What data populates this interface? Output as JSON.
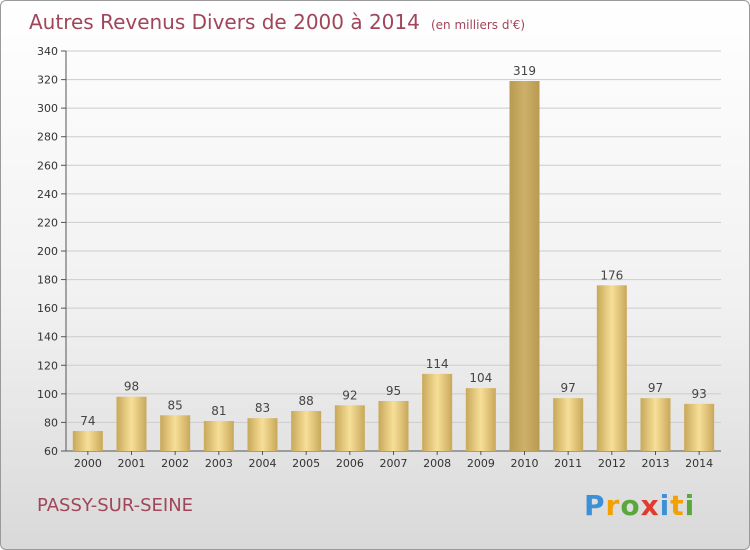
{
  "header": {
    "title": "Autres Revenus Divers de 2000 à 2014",
    "unit": "(en milliers d'€)"
  },
  "footer": {
    "place": "PASSY-SUR-SEINE",
    "brand": [
      "P",
      "r",
      "o",
      "x",
      "i",
      "t",
      "i"
    ],
    "brand_colors": [
      "#3d8fd6",
      "#f2a100",
      "#5aa83c",
      "#e03b2e",
      "#3d8fd6",
      "#f2a100",
      "#5aa83c"
    ]
  },
  "colors": {
    "bar_light": "#f7df98",
    "bar_dark": "#c8a85a",
    "grid": "#cccccc"
  },
  "chart_data": {
    "type": "bar",
    "title": "Autres Revenus Divers de 2000 à 2014",
    "subtitle": "(en milliers d'€)",
    "xlabel": "",
    "ylabel": "",
    "categories": [
      "2000",
      "2001",
      "2002",
      "2003",
      "2004",
      "2005",
      "2006",
      "2007",
      "2008",
      "2009",
      "2010",
      "2011",
      "2012",
      "2013",
      "2014"
    ],
    "values": [
      74,
      98,
      85,
      81,
      83,
      88,
      92,
      95,
      114,
      104,
      319,
      97,
      176,
      97,
      93
    ],
    "ylim": [
      60,
      340
    ],
    "yticks": [
      60,
      80,
      100,
      120,
      140,
      160,
      180,
      200,
      220,
      240,
      260,
      280,
      300,
      320,
      340
    ],
    "highlight_index": 10,
    "grid": true
  }
}
